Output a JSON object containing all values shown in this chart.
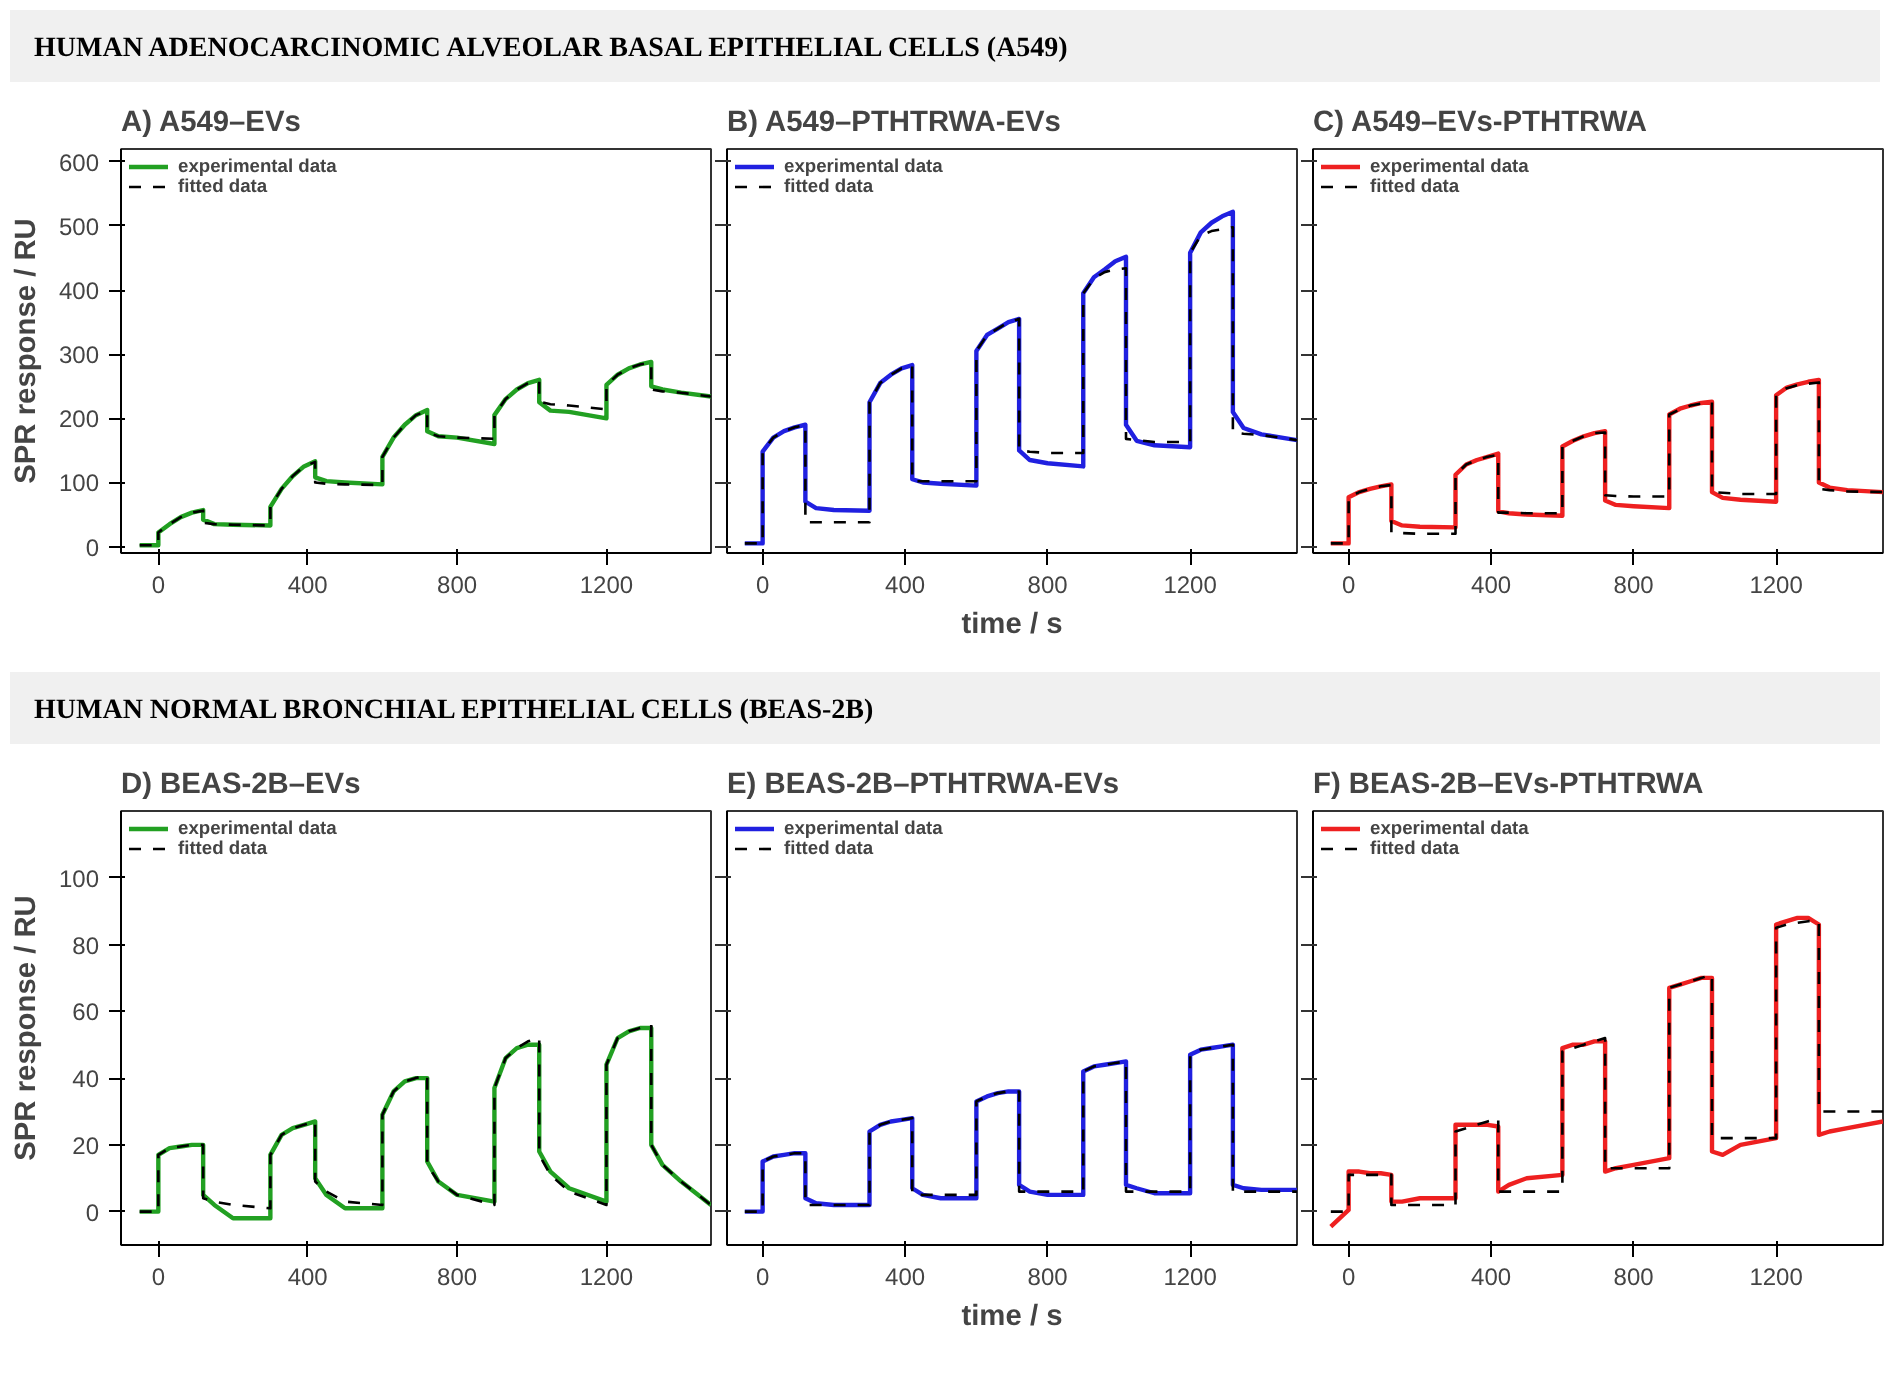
{
  "chart_data": [
    {
      "type": "line",
      "subtitle": "HUMAN ADENOCARCINOMIC ALVEOLAR BASAL EPITHELIAL CELLS (A549)",
      "title": "A) A549–EVs",
      "ylabel": "SPR response / RU",
      "xlim": [
        -100,
        1480
      ],
      "ylim": [
        -10,
        620
      ],
      "xticks": [
        0,
        400,
        800,
        1200
      ],
      "yticks": [
        0,
        100,
        200,
        300,
        400,
        500,
        600
      ],
      "legend": "top left",
      "x": [
        -50,
        0,
        0,
        30,
        60,
        90,
        120,
        120,
        150,
        200,
        300,
        300,
        330,
        360,
        390,
        420,
        420,
        450,
        500,
        600,
        600,
        630,
        660,
        690,
        720,
        720,
        750,
        800,
        900,
        900,
        930,
        960,
        990,
        1020,
        1020,
        1050,
        1100,
        1200,
        1200,
        1230,
        1260,
        1290,
        1320,
        1320,
        1350,
        1400,
        1480
      ],
      "series": [
        {
          "name": "experimental data",
          "color": "#22a022",
          "line_style": "solid",
          "values": [
            2,
            2,
            22,
            35,
            46,
            53,
            57,
            42,
            35,
            34,
            33,
            62,
            90,
            110,
            125,
            133,
            108,
            102,
            100,
            97,
            140,
            170,
            190,
            205,
            213,
            180,
            172,
            170,
            160,
            205,
            230,
            245,
            255,
            260,
            225,
            212,
            210,
            200,
            252,
            268,
            278,
            284,
            288,
            250,
            245,
            240,
            234
          ]
        },
        {
          "name": "fitted data",
          "color": "#000000",
          "line_style": "dashed",
          "values": [
            2,
            2,
            22,
            35,
            46,
            53,
            56,
            37,
            35,
            34,
            33,
            62,
            90,
            110,
            125,
            132,
            100,
            98,
            97,
            96,
            140,
            170,
            190,
            205,
            212,
            178,
            172,
            170,
            168,
            205,
            230,
            245,
            255,
            258,
            226,
            222,
            220,
            214,
            252,
            268,
            278,
            284,
            287,
            245,
            242,
            240,
            234
          ]
        }
      ]
    },
    {
      "type": "line",
      "title": "B) A549–PTHTRWA-EVs",
      "xlabel": "time / s",
      "xlim": [
        -100,
        1500
      ],
      "ylim": [
        -10,
        620
      ],
      "xticks": [
        0,
        400,
        800,
        1200
      ],
      "yticks": [
        0,
        100,
        200,
        300,
        400,
        500,
        600
      ],
      "tick_labels": "x",
      "legend": "top left",
      "x": [
        -50,
        0,
        0,
        30,
        60,
        90,
        120,
        120,
        150,
        200,
        300,
        300,
        330,
        360,
        390,
        420,
        420,
        450,
        500,
        600,
        600,
        630,
        660,
        690,
        720,
        720,
        750,
        800,
        900,
        900,
        930,
        960,
        990,
        1020,
        1020,
        1050,
        1100,
        1200,
        1200,
        1230,
        1260,
        1290,
        1320,
        1320,
        1350,
        1400,
        1500
      ],
      "series": [
        {
          "name": "experimental data",
          "color": "#2020e0",
          "line_style": "solid",
          "values": [
            5,
            5,
            148,
            170,
            180,
            186,
            190,
            70,
            60,
            57,
            56,
            225,
            255,
            268,
            278,
            283,
            105,
            100,
            98,
            95,
            305,
            330,
            340,
            350,
            355,
            150,
            135,
            130,
            125,
            395,
            420,
            432,
            445,
            452,
            190,
            165,
            158,
            155,
            458,
            490,
            505,
            515,
            522,
            210,
            185,
            175,
            166
          ]
        },
        {
          "name": "fitted data",
          "color": "#000000",
          "line_style": "dashed",
          "values": [
            5,
            5,
            148,
            170,
            180,
            186,
            190,
            38,
            38,
            38,
            38,
            225,
            255,
            268,
            278,
            283,
            102,
            102,
            102,
            102,
            305,
            330,
            340,
            350,
            355,
            150,
            148,
            146,
            146,
            395,
            418,
            428,
            432,
            434,
            168,
            166,
            163,
            163,
            458,
            485,
            492,
            495,
            498,
            178,
            176,
            174,
            166
          ]
        }
      ]
    },
    {
      "type": "line",
      "title": "C) A549–EVs-PTHTRWA",
      "xlim": [
        -100,
        1500
      ],
      "ylim": [
        -10,
        620
      ],
      "xticks": [
        0,
        400,
        800,
        1200
      ],
      "yticks": [
        0,
        100,
        200,
        300,
        400,
        500,
        600
      ],
      "tick_labels": "x",
      "legend": "top left",
      "x": [
        -50,
        0,
        0,
        30,
        60,
        90,
        120,
        120,
        150,
        200,
        300,
        300,
        330,
        360,
        390,
        420,
        420,
        450,
        500,
        600,
        600,
        630,
        660,
        690,
        720,
        720,
        750,
        800,
        900,
        900,
        930,
        960,
        990,
        1020,
        1020,
        1050,
        1100,
        1200,
        1200,
        1230,
        1260,
        1290,
        1320,
        1320,
        1350,
        1400,
        1500
      ],
      "series": [
        {
          "name": "experimental data",
          "color": "#ee2020",
          "line_style": "solid",
          "values": [
            5,
            5,
            77,
            85,
            90,
            94,
            97,
            40,
            33,
            31,
            30,
            112,
            128,
            135,
            140,
            145,
            55,
            52,
            50,
            48,
            156,
            165,
            172,
            177,
            180,
            72,
            65,
            63,
            60,
            206,
            215,
            220,
            224,
            226,
            85,
            76,
            73,
            70,
            236,
            248,
            253,
            257,
            260,
            100,
            92,
            88,
            85
          ]
        },
        {
          "name": "fitted data",
          "color": "#000000",
          "line_style": "dashed",
          "values": [
            5,
            5,
            77,
            85,
            90,
            94,
            96,
            22,
            21,
            20,
            20,
            112,
            128,
            135,
            140,
            143,
            53,
            53,
            52,
            52,
            156,
            165,
            172,
            177,
            178,
            80,
            79,
            78,
            78,
            206,
            214,
            220,
            223,
            225,
            85,
            84,
            82,
            82,
            236,
            247,
            252,
            254,
            256,
            90,
            88,
            86,
            85
          ]
        }
      ]
    },
    {
      "type": "line",
      "subtitle": "HUMAN NORMAL BRONCHIAL EPITHELIAL CELLS (BEAS-2B)",
      "title": "D) BEAS-2B–EVs",
      "ylabel": "SPR response / RU",
      "xlim": [
        -100,
        1480
      ],
      "ylim": [
        -10,
        120
      ],
      "xticks": [
        0,
        400,
        800,
        1200
      ],
      "yticks": [
        0,
        20,
        40,
        60,
        80,
        100
      ],
      "legend": "top left",
      "x": [
        -50,
        0,
        0,
        30,
        60,
        90,
        120,
        120,
        150,
        200,
        300,
        300,
        330,
        360,
        390,
        420,
        420,
        450,
        500,
        600,
        600,
        630,
        660,
        690,
        720,
        720,
        750,
        800,
        900,
        900,
        930,
        960,
        990,
        1020,
        1020,
        1050,
        1100,
        1200,
        1200,
        1230,
        1260,
        1290,
        1320,
        1320,
        1350,
        1400,
        1480
      ],
      "series": [
        {
          "name": "experimental data",
          "color": "#22a022",
          "line_style": "solid",
          "values": [
            0,
            0,
            17,
            19,
            19.5,
            20,
            20,
            5,
            2,
            -2,
            -2,
            17,
            23,
            25,
            26,
            27,
            10,
            5,
            1,
            1,
            29,
            36,
            39,
            40,
            40,
            15,
            9,
            5,
            3,
            37,
            46,
            49,
            50,
            50,
            18,
            12,
            7,
            3,
            44,
            52,
            54,
            55,
            55,
            20,
            14,
            9,
            2
          ]
        },
        {
          "name": "fitted data",
          "color": "#000000",
          "line_style": "dashed",
          "values": [
            0,
            0,
            17,
            19,
            19.5,
            20,
            20,
            4,
            3,
            2,
            1,
            17,
            23,
            25,
            26,
            27,
            9,
            6,
            3,
            2,
            29,
            36,
            39,
            40,
            41,
            14,
            9,
            5,
            2,
            37,
            46,
            49,
            51,
            52,
            17,
            11,
            6,
            2,
            44,
            52,
            54,
            55,
            56,
            20,
            14,
            9,
            2
          ]
        }
      ]
    },
    {
      "type": "line",
      "title": "E) BEAS-2B–PTHTRWA-EVs",
      "xlabel": "time / s",
      "xlim": [
        -100,
        1500
      ],
      "ylim": [
        -10,
        120
      ],
      "xticks": [
        0,
        400,
        800,
        1200
      ],
      "yticks": [
        0,
        20,
        40,
        60,
        80,
        100
      ],
      "tick_labels": "x",
      "legend": "top left",
      "x": [
        -50,
        0,
        0,
        30,
        60,
        90,
        120,
        120,
        150,
        200,
        300,
        300,
        330,
        360,
        390,
        420,
        420,
        450,
        500,
        600,
        600,
        630,
        660,
        690,
        720,
        720,
        750,
        800,
        900,
        900,
        930,
        960,
        990,
        1020,
        1020,
        1050,
        1100,
        1200,
        1200,
        1230,
        1260,
        1290,
        1320,
        1320,
        1350,
        1400,
        1500
      ],
      "series": [
        {
          "name": "experimental data",
          "color": "#2020e0",
          "line_style": "solid",
          "values": [
            0,
            0,
            15,
            16.5,
            17,
            17.5,
            17.5,
            4,
            2.5,
            2,
            2,
            24,
            26,
            27,
            27.5,
            28,
            7,
            5,
            4,
            4,
            33,
            34.5,
            35.5,
            36,
            36,
            8,
            6,
            5,
            5,
            42,
            43.5,
            44,
            44.5,
            45,
            8,
            7,
            5.5,
            5.5,
            47,
            48.5,
            49,
            49.5,
            50,
            8,
            7,
            6.5,
            6.5
          ]
        },
        {
          "name": "fitted data",
          "color": "#000000",
          "line_style": "dashed",
          "values": [
            0,
            0,
            15,
            16.5,
            17,
            17.5,
            17.5,
            2,
            2,
            2,
            2,
            24,
            26,
            27,
            27.5,
            28,
            5,
            5,
            5,
            5,
            33,
            34.5,
            35.5,
            36,
            36,
            6,
            6,
            6,
            6,
            42,
            43.5,
            44,
            44.5,
            45,
            6,
            6,
            6,
            6,
            47,
            48.5,
            49,
            49.5,
            50,
            6,
            6,
            6,
            6
          ]
        }
      ]
    },
    {
      "type": "line",
      "title": "F) BEAS-2B–EVs-PTHTRWA",
      "xlim": [
        -100,
        1500
      ],
      "ylim": [
        -10,
        120
      ],
      "xticks": [
        0,
        400,
        800,
        1200
      ],
      "yticks": [
        0,
        20,
        40,
        60,
        80,
        100
      ],
      "tick_labels": "x",
      "legend": "top left",
      "x": [
        -50,
        0,
        0,
        30,
        60,
        90,
        120,
        120,
        150,
        200,
        300,
        300,
        330,
        360,
        390,
        420,
        420,
        450,
        500,
        600,
        600,
        630,
        660,
        690,
        720,
        720,
        750,
        800,
        900,
        900,
        930,
        960,
        990,
        1020,
        1020,
        1050,
        1100,
        1200,
        1200,
        1230,
        1260,
        1290,
        1320,
        1320,
        1350,
        1400,
        1500
      ],
      "series": [
        {
          "name": "experimental data",
          "color": "#ee2020",
          "line_style": "solid",
          "values": [
            -4.5,
            0.5,
            12,
            12,
            11.5,
            11.5,
            11,
            3,
            3,
            4,
            4,
            26,
            26,
            26,
            26,
            25.5,
            6,
            8,
            10,
            11,
            49,
            50,
            50,
            51,
            51,
            12,
            13,
            14,
            16,
            67,
            68,
            69,
            70,
            70,
            18,
            17,
            20,
            22,
            86,
            87,
            88,
            88,
            86,
            23,
            24,
            25,
            27
          ]
        },
        {
          "name": "fitted data",
          "color": "#000000",
          "line_style": "dashed",
          "values": [
            0,
            0,
            11,
            11,
            11,
            11,
            11,
            2,
            2,
            2,
            2,
            24,
            25,
            26,
            27,
            28,
            6,
            6,
            6,
            6,
            48,
            49,
            50,
            51,
            52,
            13,
            13,
            13,
            13,
            67,
            68,
            69,
            70,
            71,
            22,
            22,
            22,
            22,
            85,
            86,
            86.5,
            87,
            87,
            30,
            30,
            30,
            30
          ]
        }
      ]
    }
  ]
}
